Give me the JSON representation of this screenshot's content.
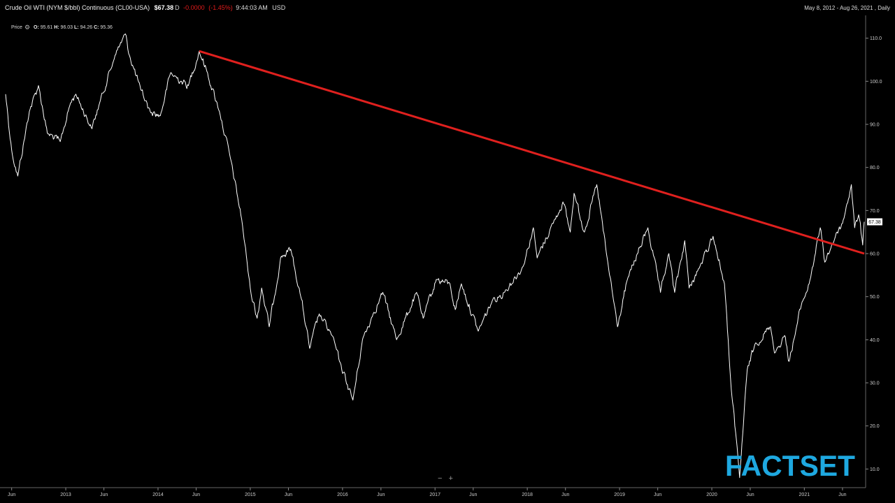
{
  "header": {
    "title": "Crude Oil WTI (NYM $/bbl) Continuous",
    "ticker": "(CL00-USA)",
    "last_price": "$67.38",
    "flag": "D",
    "change": "-0.0000",
    "change_pct": "(-1.45%)",
    "time": "9:44:03 AM",
    "currency": "USD",
    "date_range": "May 8, 2012 - Aug 26, 2021 , Daily"
  },
  "legend": {
    "label": "Price",
    "o_label": "O:",
    "o_value": "95.61",
    "h_label": "H:",
    "h_value": "96.03",
    "l_label": "L:",
    "l_value": "94.26",
    "c_label": "C:",
    "c_value": "95.36"
  },
  "last_price_tag": "67.38",
  "zoom": {
    "minus": "−",
    "plus": "+"
  },
  "logo": {
    "text": "FACTSET",
    "color": "#1ea8e0"
  },
  "colors": {
    "price_line": "#ffffff",
    "trendline": "#e0201e",
    "background": "#000000"
  },
  "chart_data": {
    "type": "line",
    "title": "Crude Oil WTI (NYM $/bbl) Continuous",
    "ylim": [
      6,
      114
    ],
    "y_ticks": [
      "10.0",
      "20.0",
      "30.0",
      "40.0",
      "50.0",
      "60.0",
      "70.0",
      "80.0",
      "90.0",
      "100.0",
      "110.0"
    ],
    "x_ticks": [
      {
        "label": "Jun",
        "date": "2012-06-01"
      },
      {
        "label": "2013",
        "date": "2013-01-01"
      },
      {
        "label": "Jun",
        "date": "2013-06-01"
      },
      {
        "label": "2014",
        "date": "2014-01-01"
      },
      {
        "label": "Jun",
        "date": "2014-06-01"
      },
      {
        "label": "2015",
        "date": "2015-01-01"
      },
      {
        "label": "Jun",
        "date": "2015-06-01"
      },
      {
        "label": "2016",
        "date": "2016-01-01"
      },
      {
        "label": "Jun",
        "date": "2016-06-01"
      },
      {
        "label": "2017",
        "date": "2017-01-01"
      },
      {
        "label": "Jun",
        "date": "2017-06-01"
      },
      {
        "label": "2018",
        "date": "2018-01-01"
      },
      {
        "label": "Jun",
        "date": "2018-06-01"
      },
      {
        "label": "2019",
        "date": "2019-01-01"
      },
      {
        "label": "Jun",
        "date": "2019-06-01"
      },
      {
        "label": "2020",
        "date": "2020-01-01"
      },
      {
        "label": "Jun",
        "date": "2020-06-01"
      },
      {
        "label": "2021",
        "date": "2021-01-01"
      },
      {
        "label": "Jun",
        "date": "2021-06-01"
      }
    ],
    "date_start": "2012-05-08",
    "date_end": "2021-08-26",
    "series": [
      {
        "values": [
          [
            "2012-05-08",
            97
          ],
          [
            "2012-06-01",
            84
          ],
          [
            "2012-06-25",
            78
          ],
          [
            "2012-08-10",
            93
          ],
          [
            "2012-09-15",
            99
          ],
          [
            "2012-10-20",
            88
          ],
          [
            "2012-12-10",
            86
          ],
          [
            "2013-01-20",
            95
          ],
          [
            "2013-02-10",
            97
          ],
          [
            "2013-04-15",
            89
          ],
          [
            "2013-05-15",
            95
          ],
          [
            "2013-07-15",
            106
          ],
          [
            "2013-08-25",
            111
          ],
          [
            "2013-09-10",
            106
          ],
          [
            "2013-10-25",
            98
          ],
          [
            "2013-12-01",
            93
          ],
          [
            "2014-01-10",
            92
          ],
          [
            "2014-02-20",
            102
          ],
          [
            "2014-04-01",
            100
          ],
          [
            "2014-05-01",
            99
          ],
          [
            "2014-06-13",
            107
          ],
          [
            "2014-07-10",
            103
          ],
          [
            "2014-09-01",
            93
          ],
          [
            "2014-10-15",
            82
          ],
          [
            "2014-11-28",
            68
          ],
          [
            "2015-01-01",
            52
          ],
          [
            "2015-01-28",
            45
          ],
          [
            "2015-02-15",
            52
          ],
          [
            "2015-03-17",
            43
          ],
          [
            "2015-05-01",
            59
          ],
          [
            "2015-06-10",
            61
          ],
          [
            "2015-07-20",
            50
          ],
          [
            "2015-08-24",
            38
          ],
          [
            "2015-10-01",
            46
          ],
          [
            "2015-11-20",
            41
          ],
          [
            "2015-12-20",
            35
          ],
          [
            "2016-02-11",
            26
          ],
          [
            "2016-03-20",
            40
          ],
          [
            "2016-05-01",
            46
          ],
          [
            "2016-06-08",
            51
          ],
          [
            "2016-08-02",
            40
          ],
          [
            "2016-10-20",
            51
          ],
          [
            "2016-11-15",
            45
          ],
          [
            "2017-01-06",
            54
          ],
          [
            "2017-03-01",
            53
          ],
          [
            "2017-03-22",
            47
          ],
          [
            "2017-04-15",
            53
          ],
          [
            "2017-06-21",
            42
          ],
          [
            "2017-08-15",
            49
          ],
          [
            "2017-10-01",
            51
          ],
          [
            "2017-12-15",
            57
          ],
          [
            "2018-01-25",
            66
          ],
          [
            "2018-02-09",
            59
          ],
          [
            "2018-04-20",
            68
          ],
          [
            "2018-05-22",
            72
          ],
          [
            "2018-06-20",
            65
          ],
          [
            "2018-07-05",
            74
          ],
          [
            "2018-08-15",
            65
          ],
          [
            "2018-10-03",
            76
          ],
          [
            "2018-11-10",
            60
          ],
          [
            "2018-12-24",
            43
          ],
          [
            "2019-02-01",
            54
          ],
          [
            "2019-04-23",
            66
          ],
          [
            "2019-06-12",
            51
          ],
          [
            "2019-07-15",
            60
          ],
          [
            "2019-08-07",
            51
          ],
          [
            "2019-09-16",
            63
          ],
          [
            "2019-10-03",
            52
          ],
          [
            "2019-11-15",
            57
          ],
          [
            "2020-01-06",
            64
          ],
          [
            "2020-02-20",
            53
          ],
          [
            "2020-03-15",
            31
          ],
          [
            "2020-04-01",
            20
          ],
          [
            "2020-04-20",
            8
          ],
          [
            "2020-05-20",
            33
          ],
          [
            "2020-06-20",
            39
          ],
          [
            "2020-08-20",
            43
          ],
          [
            "2020-09-08",
            37
          ],
          [
            "2020-10-15",
            41
          ],
          [
            "2020-11-02",
            35
          ],
          [
            "2020-12-20",
            48
          ],
          [
            "2021-01-20",
            53
          ],
          [
            "2021-03-05",
            66
          ],
          [
            "2021-03-23",
            58
          ],
          [
            "2021-05-10",
            65
          ],
          [
            "2021-06-01",
            67
          ],
          [
            "2021-07-06",
            76
          ],
          [
            "2021-07-19",
            66
          ],
          [
            "2021-08-04",
            69
          ],
          [
            "2021-08-20",
            62
          ],
          [
            "2021-08-26",
            67.38
          ]
        ]
      }
    ],
    "trendline": {
      "start": [
        "2014-06-13",
        107.0
      ],
      "end": [
        "2021-08-26",
        60.0
      ]
    },
    "grid": false,
    "legend": "none"
  }
}
